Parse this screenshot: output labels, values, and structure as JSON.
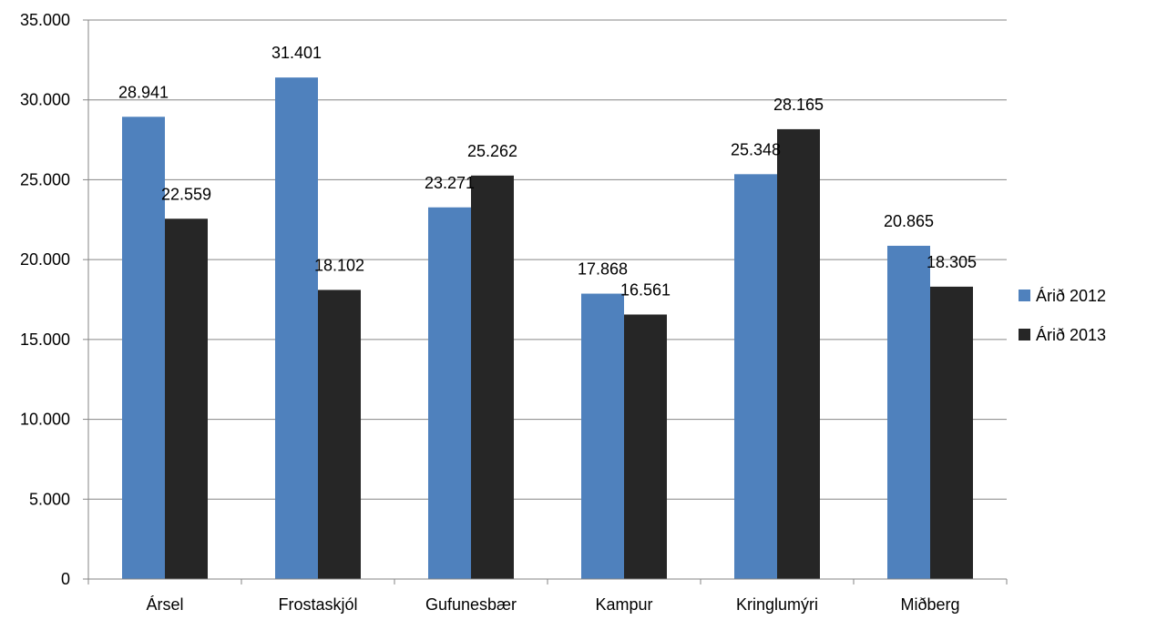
{
  "chart_data": {
    "type": "bar",
    "title": "",
    "xlabel": "",
    "ylabel": "",
    "ylim": [
      0,
      35000
    ],
    "y_ticks": [
      0,
      5000,
      10000,
      15000,
      20000,
      25000,
      30000,
      35000
    ],
    "y_tick_labels": [
      "0",
      "5.000",
      "10.000",
      "15.000",
      "20.000",
      "25.000",
      "30.000",
      "35.000"
    ],
    "grid": true,
    "legend_position": "right",
    "categories": [
      "Ársel",
      "Frostaskjól",
      "Gufunesbær",
      "Kampur",
      "Kringlumýri",
      "Miðberg"
    ],
    "series": [
      {
        "name": "Árið 2012",
        "color": "#4f81bd",
        "values": [
          28941,
          31401,
          23271,
          17868,
          25348,
          20865
        ],
        "labels": [
          "28.941",
          "31.401",
          "23.271",
          "17.868",
          "25.348",
          "20.865"
        ]
      },
      {
        "name": "Árið 2013",
        "color": "#262626",
        "values": [
          22559,
          18102,
          25262,
          16561,
          28165,
          18305
        ],
        "labels": [
          "22.559",
          "18.102",
          "25.262",
          "16.561",
          "28.165",
          "18.305"
        ]
      }
    ]
  }
}
